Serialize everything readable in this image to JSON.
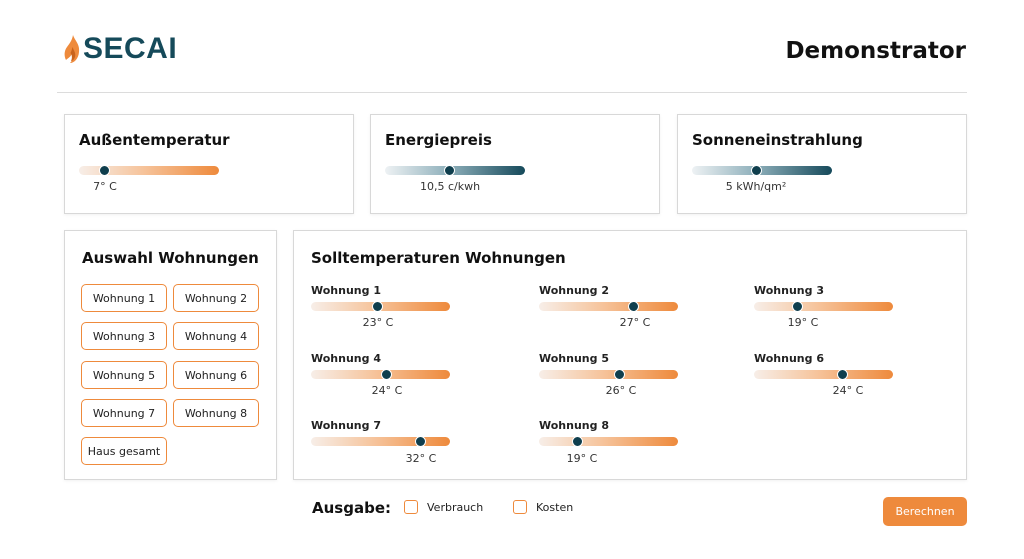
{
  "header": {
    "logo_text": "SECAI",
    "title": "Demonstrator"
  },
  "colors": {
    "accent": "#ee8a3c",
    "brand": "#154a5a",
    "knob": "#0f3e4d"
  },
  "outdoor": {
    "title": "Außentemperatur",
    "value_label": "7° C",
    "fraction": 0.18
  },
  "energy": {
    "title": "Energiepreis",
    "value_label": "10,5 c/kwh",
    "fraction": 0.46
  },
  "solar": {
    "title": "Sonneneinstrahlung",
    "value_label": "5 kWh/qm²",
    "fraction": 0.46
  },
  "selection": {
    "title": "Auswahl Wohnungen",
    "buttons": [
      "Wohnung 1",
      "Wohnung 2",
      "Wohnung 3",
      "Wohnung 4",
      "Wohnung 5",
      "Wohnung 6",
      "Wohnung 7",
      "Wohnung 8",
      "Haus gesamt"
    ]
  },
  "targets": {
    "title": "Solltemperaturen Wohnungen",
    "apartments": [
      {
        "label": "Wohnung 1",
        "value_label": "23° C",
        "fraction": 0.48
      },
      {
        "label": "Wohnung 2",
        "value_label": "27° C",
        "fraction": 0.68
      },
      {
        "label": "Wohnung 3",
        "value_label": "19° C",
        "fraction": 0.31
      },
      {
        "label": "Wohnung 4",
        "value_label": "24° C",
        "fraction": 0.54
      },
      {
        "label": "Wohnung 5",
        "value_label": "26° C",
        "fraction": 0.58
      },
      {
        "label": "Wohnung 6",
        "value_label": "24° C",
        "fraction": 0.64
      },
      {
        "label": "Wohnung 7",
        "value_label": "32° C",
        "fraction": 0.79
      },
      {
        "label": "Wohnung 8",
        "value_label": "19° C",
        "fraction": 0.28
      }
    ]
  },
  "output": {
    "label": "Ausgabe:",
    "options": [
      {
        "label": "Verbrauch"
      },
      {
        "label": "Kosten"
      }
    ],
    "calculate_label": "Berechnen"
  }
}
